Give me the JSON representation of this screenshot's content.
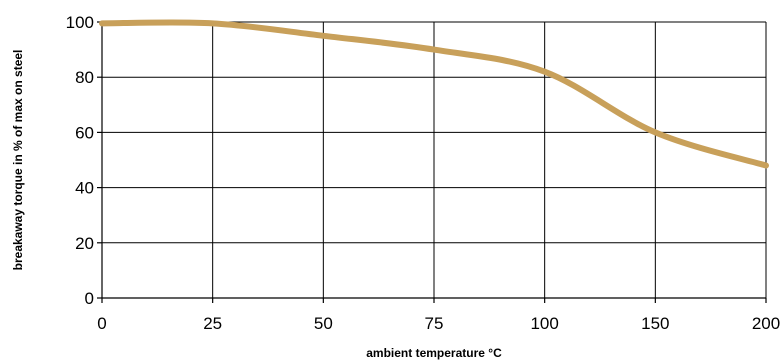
{
  "chart_data": {
    "type": "line",
    "title": "",
    "xlabel": "ambient temperature °C",
    "ylabel": "breakaway torque in % of max on steel",
    "xlim": [
      0,
      200
    ],
    "ylim": [
      0,
      100
    ],
    "x_category_ticks": [
      "0",
      "25",
      "50",
      "75",
      "100",
      "150",
      "200"
    ],
    "y_ticks": [
      0,
      20,
      40,
      60,
      80,
      100
    ],
    "grid": true,
    "legend": "none",
    "series": [
      {
        "color": "#c8a05a",
        "points": [
          {
            "x": "0",
            "y": 99.5
          },
          {
            "x": "25",
            "y": 99.5
          },
          {
            "x": "50",
            "y": 95
          },
          {
            "x": "75",
            "y": 90
          },
          {
            "x": "100",
            "y": 82
          },
          {
            "x": "150",
            "y": 60
          },
          {
            "x": "200",
            "y": 48
          }
        ]
      }
    ]
  }
}
